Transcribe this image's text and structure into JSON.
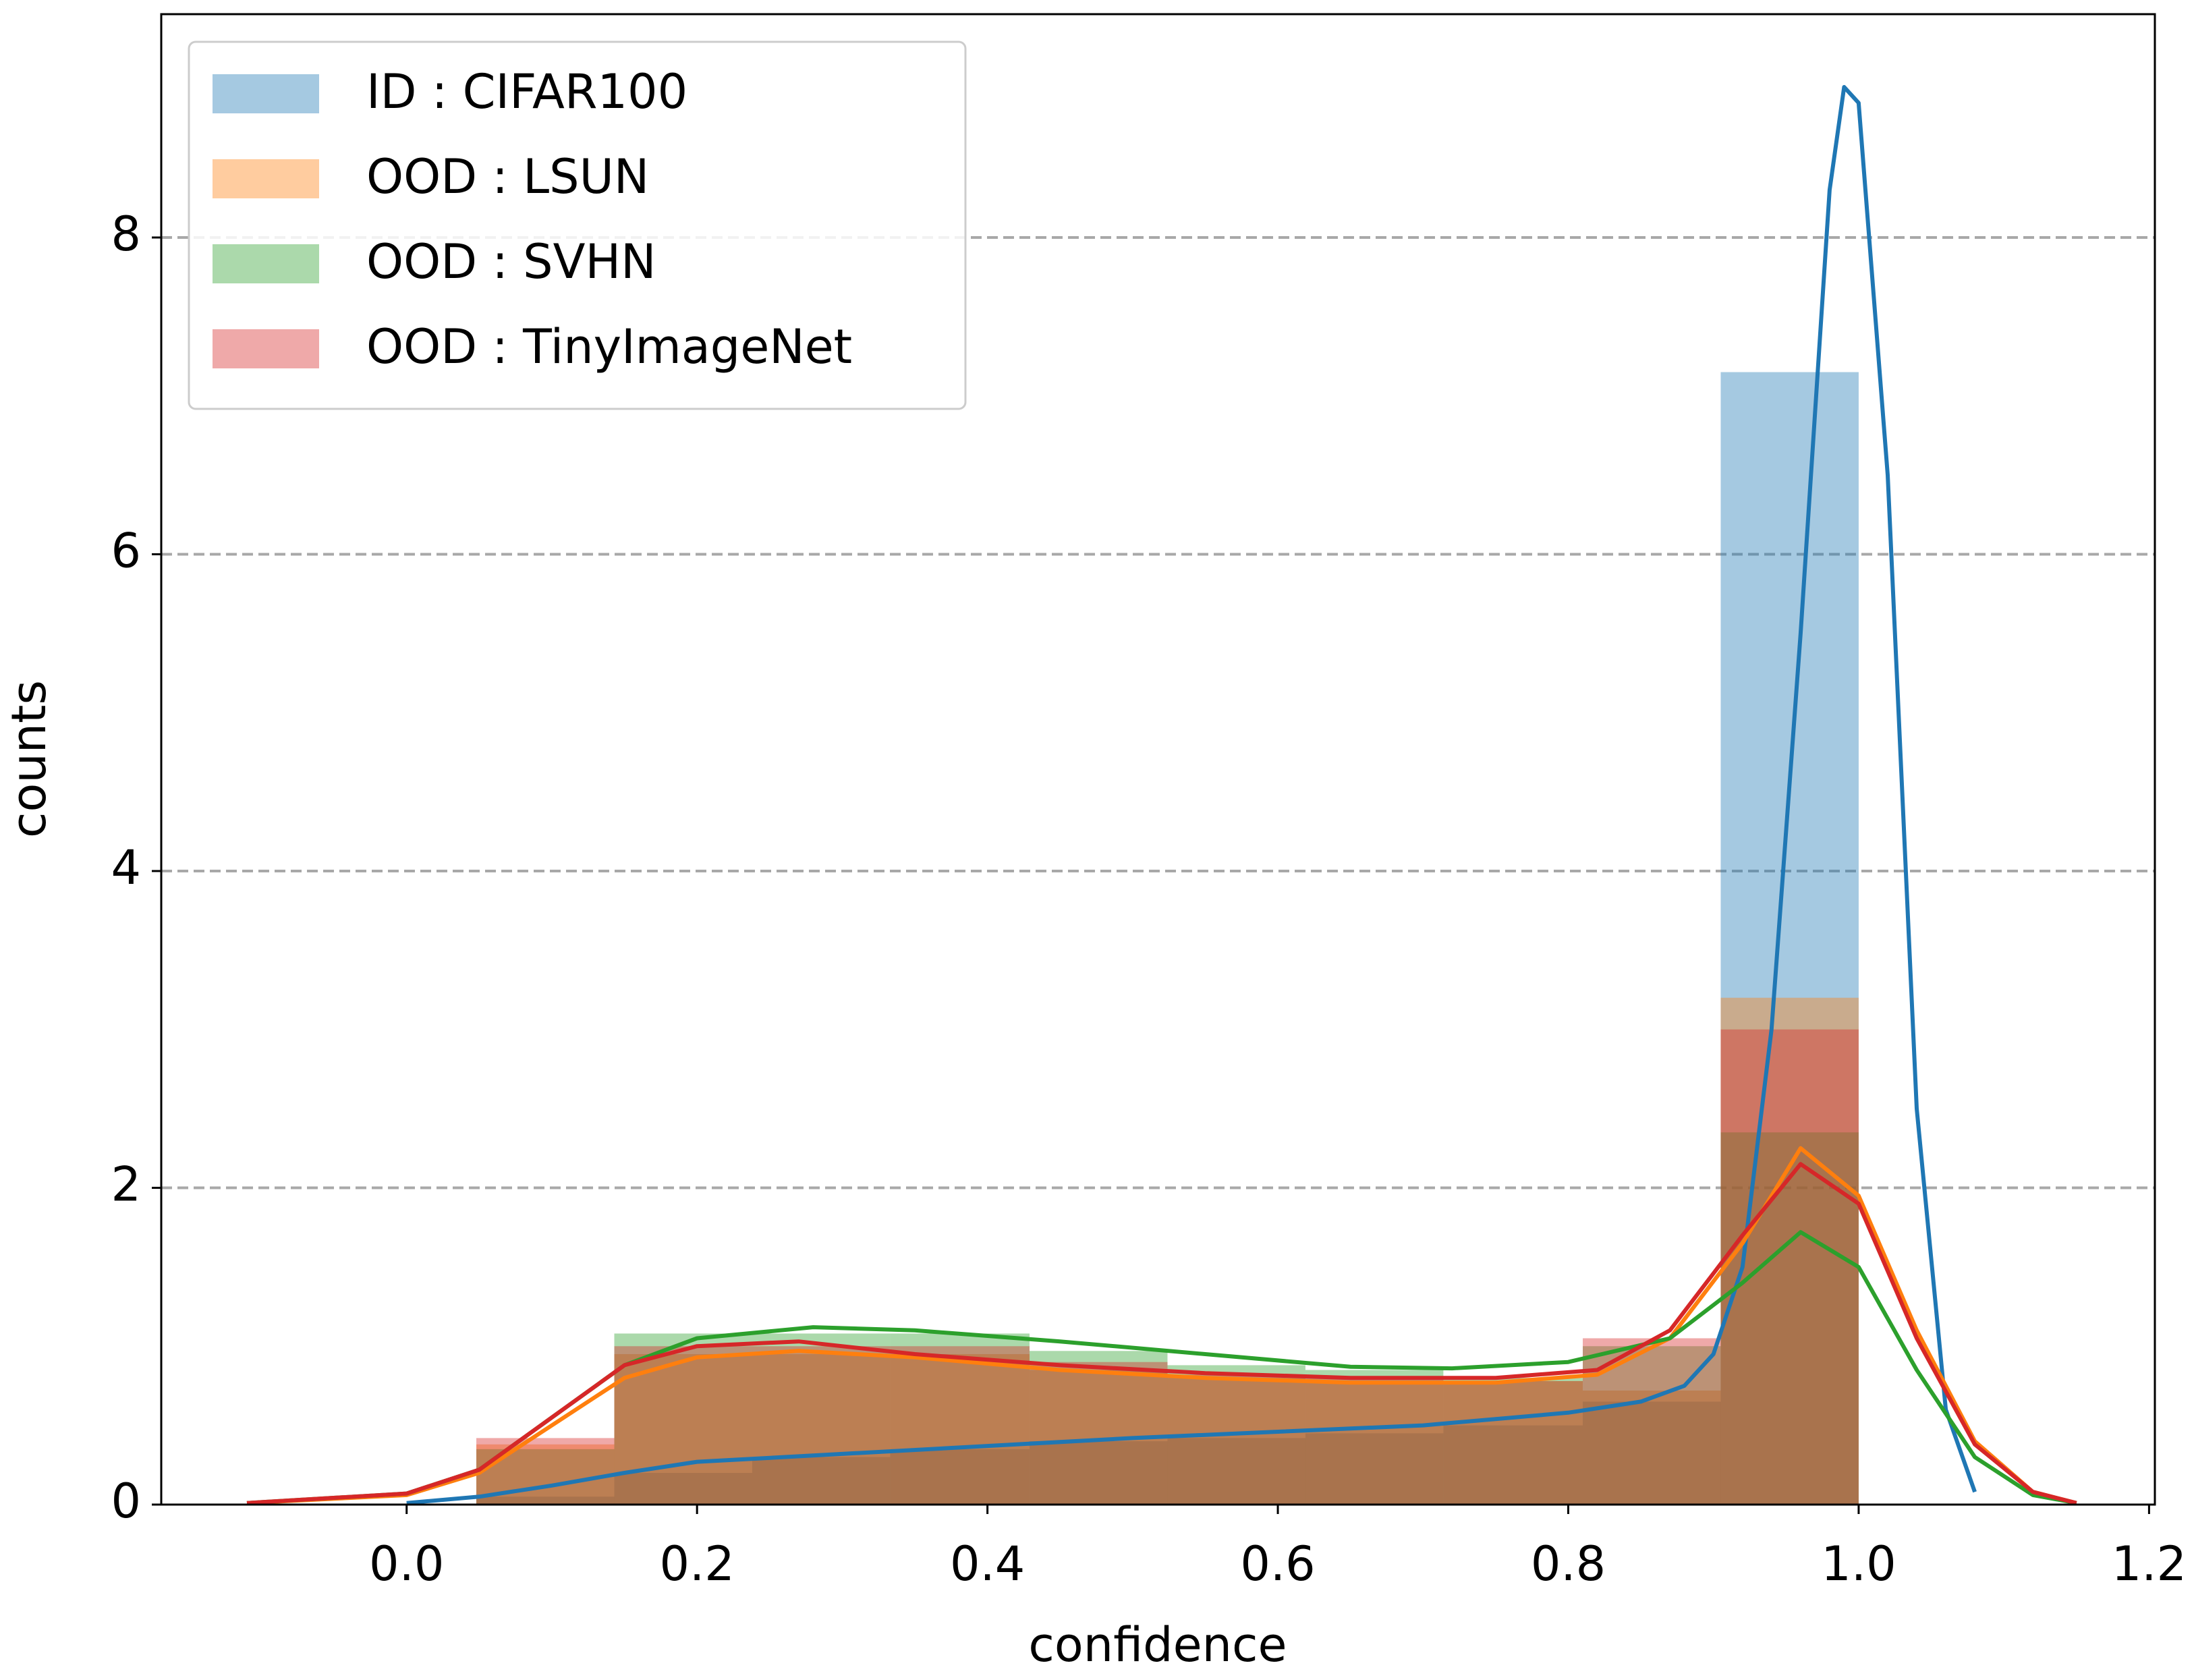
{
  "chart_data": {
    "type": "histogram",
    "x_label": "confidence",
    "y_label": "counts",
    "bins": [
      0.048,
      0.143,
      0.238,
      0.333,
      0.429,
      0.524,
      0.619,
      0.714,
      0.81,
      0.905,
      1.0
    ],
    "series": [
      {
        "name": "ID : CIFAR100",
        "color": "#1f77b4",
        "values": [
          0.05,
          0.2,
          0.3,
          0.35,
          0.4,
          0.42,
          0.45,
          0.5,
          0.65,
          7.15
        ],
        "kde_x": [
          0.0,
          0.05,
          0.1,
          0.15,
          0.2,
          0.3,
          0.4,
          0.5,
          0.6,
          0.7,
          0.8,
          0.85,
          0.88,
          0.9,
          0.92,
          0.94,
          0.96,
          0.98,
          0.99,
          1.0,
          1.02,
          1.04,
          1.06,
          1.08
        ],
        "kde_values": [
          0.01,
          0.05,
          0.12,
          0.2,
          0.27,
          0.32,
          0.37,
          0.42,
          0.46,
          0.5,
          0.58,
          0.65,
          0.75,
          0.95,
          1.5,
          3,
          5.5,
          8.3,
          8.95,
          8.85,
          6.5,
          2.5,
          0.6,
          0.08
        ]
      },
      {
        "name": "OOD : LSUN",
        "color": "#ff7f0e",
        "values": [
          0.38,
          0.95,
          0.95,
          0.95,
          0.85,
          0.8,
          0.78,
          0.78,
          0.72,
          3.2
        ],
        "kde_x": [
          -0.11,
          0,
          0.05,
          0.1,
          0.15,
          0.2,
          0.27,
          0.35,
          0.45,
          0.55,
          0.65,
          0.75,
          0.82,
          0.87,
          0.92,
          0.96,
          1.0,
          1.04,
          1.08,
          1.12,
          1.15
        ],
        "kde_values": [
          0.01,
          0.06,
          0.2,
          0.5,
          0.8,
          0.93,
          0.97,
          0.93,
          0.85,
          0.8,
          0.77,
          0.77,
          0.82,
          1.05,
          1.65,
          2.25,
          1.95,
          1.1,
          0.4,
          0.08,
          0.01
        ]
      },
      {
        "name": "OOD : SVHN",
        "color": "#2ca02c",
        "values": [
          0.35,
          1.08,
          1.08,
          1.08,
          0.97,
          0.88,
          0.85,
          0.8,
          1.0,
          2.35
        ],
        "kde_x": [
          -0.11,
          0,
          0.05,
          0.1,
          0.15,
          0.2,
          0.28,
          0.35,
          0.45,
          0.55,
          0.65,
          0.72,
          0.8,
          0.87,
          0.92,
          0.96,
          1.0,
          1.04,
          1.08,
          1.12,
          1.15
        ],
        "kde_values": [
          0.01,
          0.07,
          0.22,
          0.55,
          0.88,
          1.05,
          1.12,
          1.1,
          1.03,
          0.95,
          0.87,
          0.86,
          0.9,
          1.05,
          1.4,
          1.72,
          1.5,
          0.85,
          0.3,
          0.06,
          0.01
        ]
      },
      {
        "name": "OOD : TinyImageNet",
        "color": "#d62728",
        "values": [
          0.42,
          1.0,
          1.0,
          1.0,
          0.9,
          0.82,
          0.8,
          0.78,
          1.05,
          3.0
        ],
        "kde_x": [
          -0.11,
          0,
          0.05,
          0.1,
          0.15,
          0.2,
          0.27,
          0.35,
          0.45,
          0.55,
          0.65,
          0.75,
          0.82,
          0.87,
          0.92,
          0.96,
          1.0,
          1.04,
          1.08,
          1.12,
          1.15
        ],
        "kde_values": [
          0.01,
          0.07,
          0.22,
          0.55,
          0.88,
          1.0,
          1.03,
          0.95,
          0.88,
          0.83,
          0.8,
          0.8,
          0.85,
          1.1,
          1.7,
          2.15,
          1.9,
          1.05,
          0.38,
          0.08,
          0.01
        ]
      }
    ],
    "xlim": [
      -0.169,
      1.204
    ],
    "ylim": [
      0,
      9.41
    ],
    "xticks": [
      {
        "value": 0,
        "label": "0.0"
      },
      0.2,
      0.4,
      0.6,
      0.8,
      {
        "value": 1,
        "label": "1.0"
      },
      1.2
    ],
    "yticks": [
      0,
      2,
      4,
      6,
      8
    ],
    "grid": true,
    "legend": "upper left"
  }
}
